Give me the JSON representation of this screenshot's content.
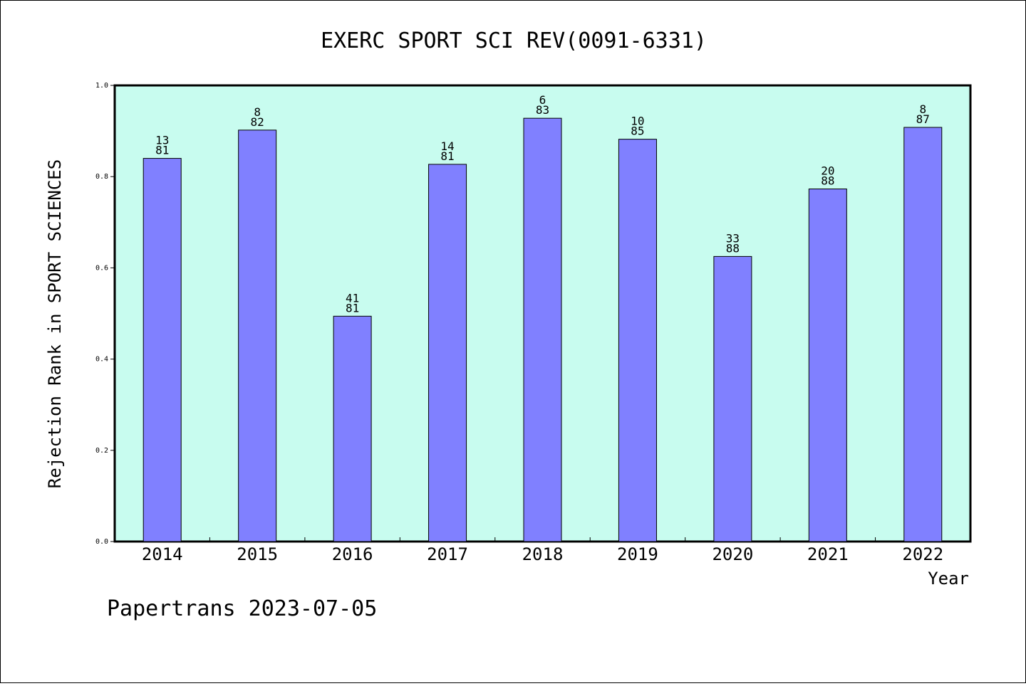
{
  "chart_data": {
    "type": "bar",
    "title": "EXERC SPORT SCI REV(0091-6331)",
    "xlabel": "Year",
    "ylabel": "Rejection Rank in SPORT SCIENCES",
    "ylim": [
      0,
      1.0
    ],
    "yticks": [
      "0.0",
      "0.2",
      "0.4",
      "0.6",
      "0.8",
      "1.0"
    ],
    "categories": [
      "2014",
      "2015",
      "2016",
      "2017",
      "2018",
      "2019",
      "2020",
      "2021",
      "2022"
    ],
    "values": [
      0.84,
      0.902,
      0.494,
      0.827,
      0.928,
      0.882,
      0.625,
      0.773,
      0.908
    ],
    "rank_labels": [
      "13",
      "8",
      "41",
      "14",
      "6",
      "10",
      "33",
      "20",
      "8"
    ],
    "total_labels": [
      "81",
      "82",
      "81",
      "81",
      "83",
      "85",
      "88",
      "88",
      "87"
    ],
    "grid": false,
    "colors": {
      "bar": "#8080ff",
      "plot_background": "#c8fcef",
      "axis": "#000000"
    }
  },
  "footer": {
    "text": "Papertrans 2023-07-05"
  }
}
